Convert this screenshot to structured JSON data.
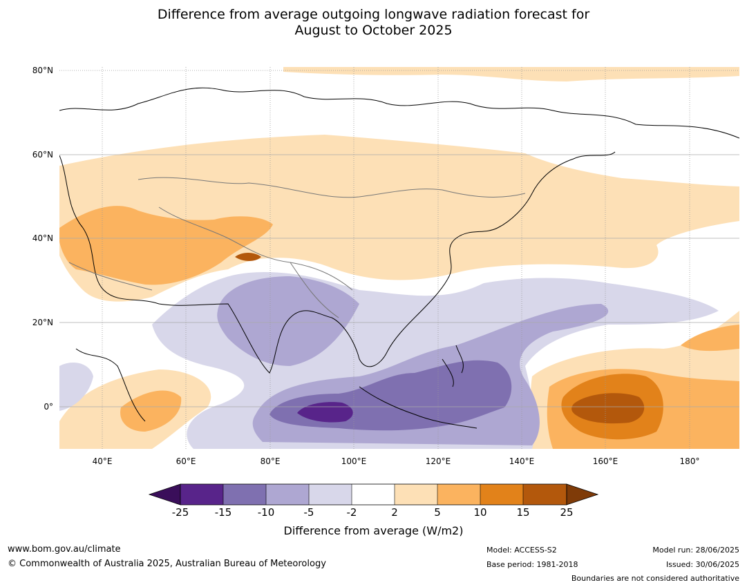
{
  "title": {
    "line1": "Difference from average outgoing longwave radiation forecast for",
    "line2": "August to October 2025"
  },
  "map": {
    "lat_labels": [
      "80°N",
      "60°N",
      "40°N",
      "20°N",
      "0°"
    ],
    "lon_labels": [
      "40°E",
      "60°E",
      "80°E",
      "100°E",
      "120°E",
      "140°E",
      "160°E",
      "180°"
    ],
    "colors": {
      "lt_-25": "#3a0e5a",
      "-25_-15": "#58248a",
      "-15_-10": "#7f70b0",
      "-10_-5": "#aea7d2",
      "-5_-2": "#d8d7ea",
      "-2_2": "#ffffff",
      "2_5": "#fde0b6",
      "5_10": "#fbb35f",
      "10_15": "#e2821a",
      "15_25": "#b3580c",
      "gt_25": "#7f3b08"
    }
  },
  "colorbar": {
    "ticks": [
      "-25",
      "-15",
      "-10",
      "-5",
      "-2",
      "2",
      "5",
      "10",
      "15",
      "25"
    ],
    "label": "Difference from average (W/m2)"
  },
  "footer": {
    "website": "www.bom.gov.au/climate",
    "copyright": "© Commonwealth of Australia 2025, Australian Bureau of Meteorology",
    "model": "Model: ACCESS-S2",
    "base_period": "Base period: 1981-2018",
    "model_run": "Model run: 28/06/2025",
    "issued": "Issued: 30/06/2025",
    "disclaimer": "Boundaries are not considered authoritative"
  }
}
